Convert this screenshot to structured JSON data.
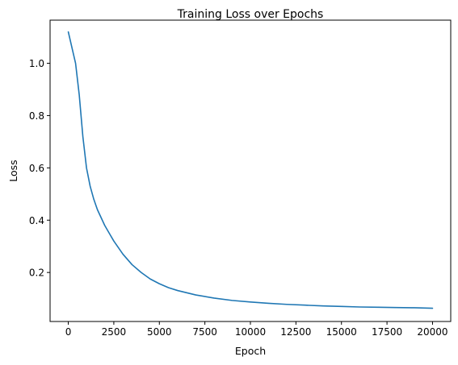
{
  "chart_data": {
    "type": "line",
    "title": "Training Loss over Epochs",
    "xlabel": "Epoch",
    "ylabel": "Loss",
    "xlim": [
      -1000,
      21000
    ],
    "ylim": [
      0.0125,
      1.165
    ],
    "xticks": [
      0,
      2500,
      5000,
      7500,
      10000,
      12500,
      15000,
      17500,
      20000
    ],
    "yticks": [
      0.2,
      0.4,
      0.6,
      0.8,
      1.0
    ],
    "xtick_labels": [
      "0",
      "2500",
      "5000",
      "7500",
      "10000",
      "12500",
      "15000",
      "17500",
      "20000"
    ],
    "ytick_labels": [
      "0.2",
      "0.4",
      "0.6",
      "0.8",
      "1.0"
    ],
    "grid": false,
    "series": [
      {
        "color": "#1f77b4",
        "x": [
          0,
          200,
          400,
          600,
          800,
          1000,
          1200,
          1400,
          1600,
          1800,
          2000,
          2250,
          2500,
          2750,
          3000,
          3500,
          4000,
          4500,
          5000,
          5500,
          6000,
          7000,
          8000,
          9000,
          10000,
          11000,
          12000,
          13000,
          14000,
          15000,
          16000,
          17000,
          18000,
          19000,
          20000
        ],
        "y": [
          1.12,
          1.06,
          1.0,
          0.88,
          0.72,
          0.6,
          0.53,
          0.48,
          0.44,
          0.41,
          0.38,
          0.35,
          0.32,
          0.295,
          0.27,
          0.23,
          0.2,
          0.175,
          0.157,
          0.142,
          0.131,
          0.114,
          0.102,
          0.093,
          0.087,
          0.082,
          0.078,
          0.075,
          0.072,
          0.07,
          0.068,
          0.067,
          0.066,
          0.065,
          0.063
        ]
      }
    ]
  }
}
